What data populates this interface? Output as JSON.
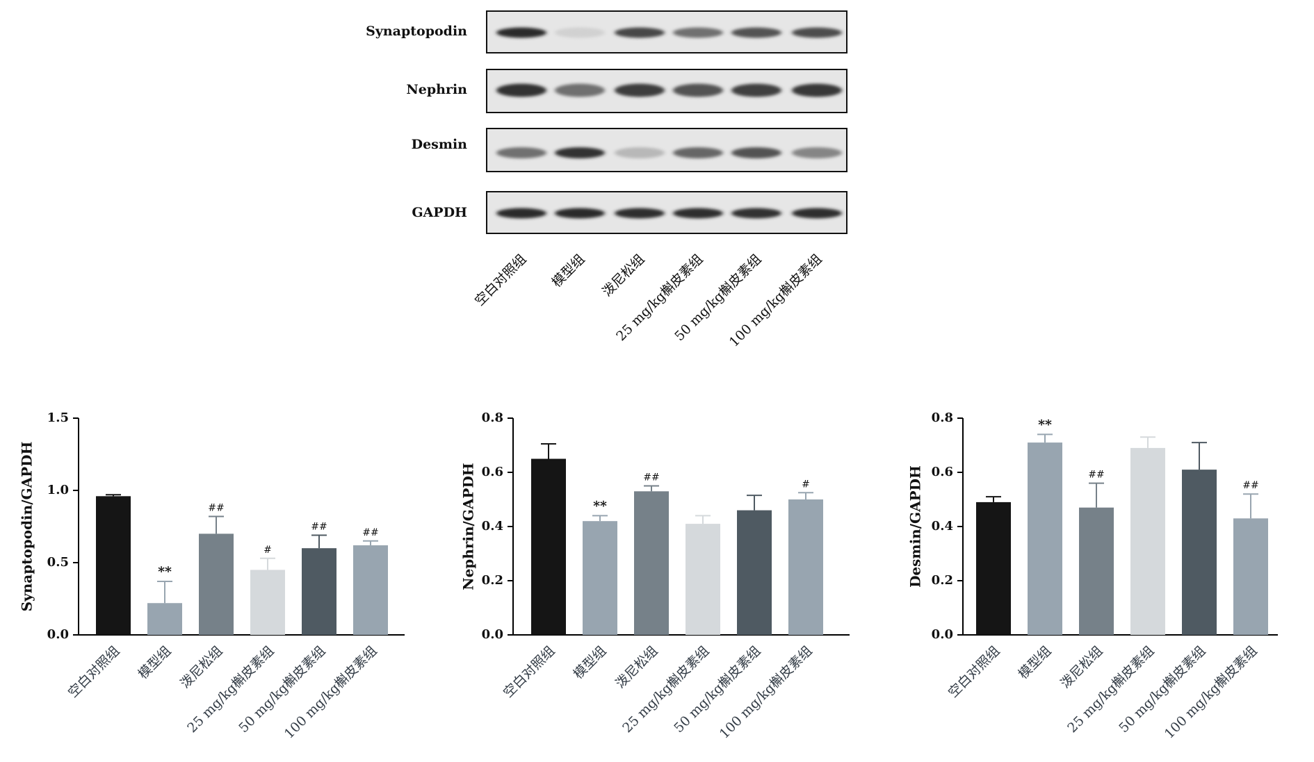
{
  "blot": {
    "proteins": [
      "Synaptopodin",
      "Nephrin",
      "Desmin",
      "GAPDH"
    ],
    "lanes": [
      "空白对照组",
      "模型组",
      "泼尼松组",
      "25 mg/kg槲皮素组",
      "50 mg/kg槲皮素组",
      "100 mg/kg槲皮素组"
    ],
    "band_intensity": {
      "Synaptopodin": [
        0.9,
        0.08,
        0.75,
        0.55,
        0.7,
        0.72
      ],
      "Nephrin": [
        0.85,
        0.55,
        0.8,
        0.7,
        0.78,
        0.82
      ],
      "Desmin": [
        0.55,
        0.85,
        0.2,
        0.6,
        0.7,
        0.45
      ],
      "GAPDH": [
        0.9,
        0.9,
        0.88,
        0.88,
        0.86,
        0.88
      ]
    }
  },
  "colors": {
    "bars": [
      "#151515",
      "#98a5b0",
      "#768189",
      "#d5d9dc",
      "#4f5a62",
      "#98a5b0"
    ],
    "axis": "#000000",
    "category_text": "#333c46"
  },
  "chart_data": [
    {
      "type": "bar",
      "title": "",
      "ylabel": "Synaptopodin/GAPDH",
      "xlabel": "",
      "ylim": [
        0,
        1.5
      ],
      "yticks": [
        "0.0",
        "0.5",
        "1.0",
        "1.5"
      ],
      "categories": [
        "空白对照组",
        "模型组",
        "泼尼松组",
        "25 mg/kg槲皮素组",
        "50 mg/kg槲皮素组",
        "100 mg/kg槲皮素组"
      ],
      "values": [
        0.96,
        0.22,
        0.7,
        0.45,
        0.6,
        0.62
      ],
      "error": [
        0.01,
        0.15,
        0.12,
        0.08,
        0.09,
        0.03
      ],
      "annotations": [
        "",
        "**",
        "##",
        "#",
        "##",
        "##"
      ]
    },
    {
      "type": "bar",
      "title": "",
      "ylabel": "Nephrin/GAPDH",
      "xlabel": "",
      "ylim": [
        0,
        0.8
      ],
      "yticks": [
        "0.0",
        "0.2",
        "0.4",
        "0.6",
        "0.8"
      ],
      "categories": [
        "空白对照组",
        "模型组",
        "泼尼松组",
        "25 mg/kg槲皮素组",
        "50 mg/kg槲皮素组",
        "100 mg/kg槲皮素组"
      ],
      "values": [
        0.65,
        0.42,
        0.53,
        0.41,
        0.46,
        0.5
      ],
      "error": [
        0.055,
        0.02,
        0.02,
        0.03,
        0.055,
        0.025
      ],
      "annotations": [
        "",
        "**",
        "##",
        "",
        "",
        "#"
      ]
    },
    {
      "type": "bar",
      "title": "",
      "ylabel": "Desmin/GAPDH",
      "xlabel": "",
      "ylim": [
        0,
        0.8
      ],
      "yticks": [
        "0.0",
        "0.2",
        "0.4",
        "0.6",
        "0.8"
      ],
      "categories": [
        "空白对照组",
        "模型组",
        "泼尼松组",
        "25 mg/kg槲皮素组",
        "50 mg/kg槲皮素组",
        "100 mg/kg槲皮素组"
      ],
      "values": [
        0.49,
        0.71,
        0.47,
        0.69,
        0.61,
        0.43
      ],
      "error": [
        0.02,
        0.03,
        0.09,
        0.04,
        0.1,
        0.09
      ],
      "annotations": [
        "",
        "**",
        "##",
        "",
        "",
        "##"
      ]
    }
  ]
}
